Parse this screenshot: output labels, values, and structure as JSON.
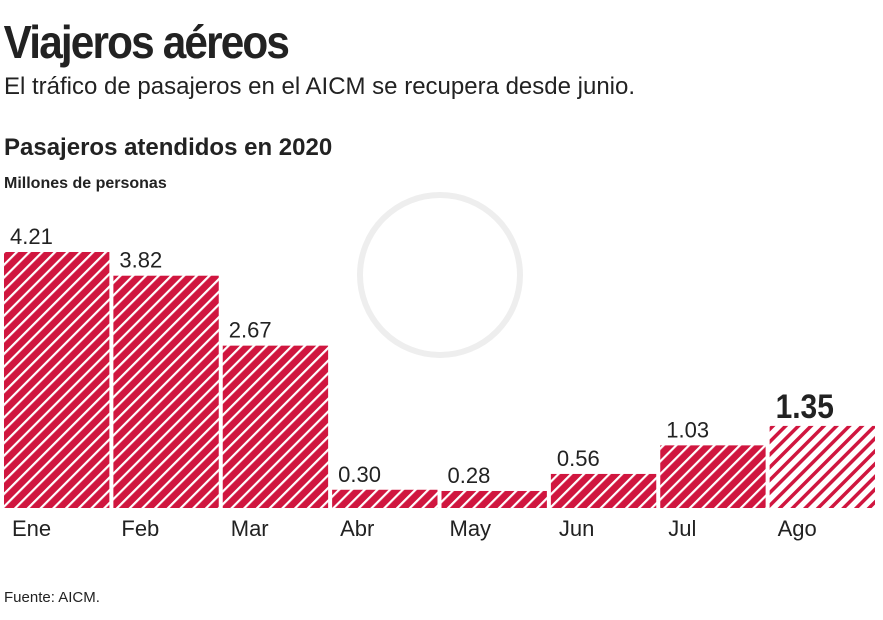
{
  "chart_data": {
    "type": "bar",
    "title": "Viajeros aéreos",
    "subtitle": "El tráfico de pasajeros en el AICM se recupera desde junio.",
    "chart_title": "Pasajeros atendidos en 2020",
    "y_label": "Millones de personas",
    "source": "Fuente: AICM.",
    "categories": [
      "Ene",
      "Feb",
      "Mar",
      "Abr",
      "May",
      "Jun",
      "Jul",
      "Ago"
    ],
    "values": [
      4.21,
      3.82,
      2.67,
      0.3,
      0.28,
      0.56,
      1.03,
      1.35
    ],
    "value_labels": [
      "4.21",
      "3.82",
      "2.67",
      "0.30",
      "0.28",
      "0.56",
      "1.03",
      "1.35"
    ],
    "color": "#d0163f"
  }
}
